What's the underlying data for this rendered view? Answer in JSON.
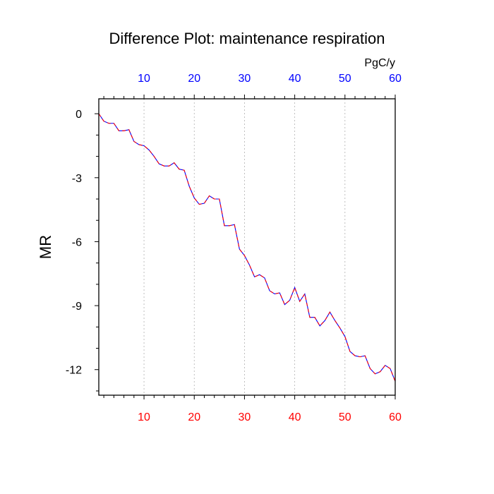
{
  "chart_data": {
    "type": "line",
    "title": "Difference Plot: maintenance respiration",
    "ylabel": "MR",
    "units": "PgC/y",
    "xlim": [
      1,
      60
    ],
    "ylim": [
      -13.2,
      0.7
    ],
    "grid_x": true,
    "grid_y": false,
    "x_ticks_bottom": [
      10,
      20,
      30,
      40,
      50,
      60
    ],
    "x_ticks_top": [
      10,
      20,
      30,
      40,
      50,
      60
    ],
    "y_ticks": [
      0,
      -3,
      -6,
      -9,
      -12
    ],
    "x_tick_color_bottom": "#ff0000",
    "x_tick_color_top": "#0000ff",
    "series": [
      {
        "color": "#0000ff",
        "overlay_color": "#ff0000",
        "style": "dashed",
        "x": [
          1,
          2,
          3,
          4,
          5,
          6,
          7,
          8,
          9,
          10,
          11,
          12,
          13,
          14,
          15,
          16,
          17,
          18,
          19,
          20,
          21,
          22,
          23,
          24,
          25,
          26,
          27,
          28,
          29,
          30,
          31,
          32,
          33,
          34,
          35,
          36,
          37,
          38,
          39,
          40,
          41,
          42,
          43,
          44,
          45,
          46,
          47,
          48,
          49,
          50,
          51,
          52,
          53,
          54,
          55,
          56,
          57,
          58,
          59,
          60
        ],
        "y": [
          0.0,
          -0.35,
          -0.45,
          -0.45,
          -0.8,
          -0.8,
          -0.75,
          -1.3,
          -1.45,
          -1.5,
          -1.7,
          -2.0,
          -2.35,
          -2.45,
          -2.45,
          -2.3,
          -2.6,
          -2.65,
          -3.4,
          -3.95,
          -4.25,
          -4.2,
          -3.85,
          -4.0,
          -4.0,
          -5.25,
          -5.25,
          -5.2,
          -6.35,
          -6.65,
          -7.1,
          -7.65,
          -7.55,
          -7.7,
          -8.3,
          -8.45,
          -8.4,
          -8.95,
          -8.75,
          -8.15,
          -8.8,
          -8.45,
          -9.55,
          -9.55,
          -9.95,
          -9.7,
          -9.3,
          -9.7,
          -10.05,
          -10.45,
          -11.15,
          -11.35,
          -11.4,
          -11.35,
          -11.95,
          -12.2,
          -12.1,
          -11.8,
          -11.95,
          -12.55
        ]
      }
    ]
  }
}
